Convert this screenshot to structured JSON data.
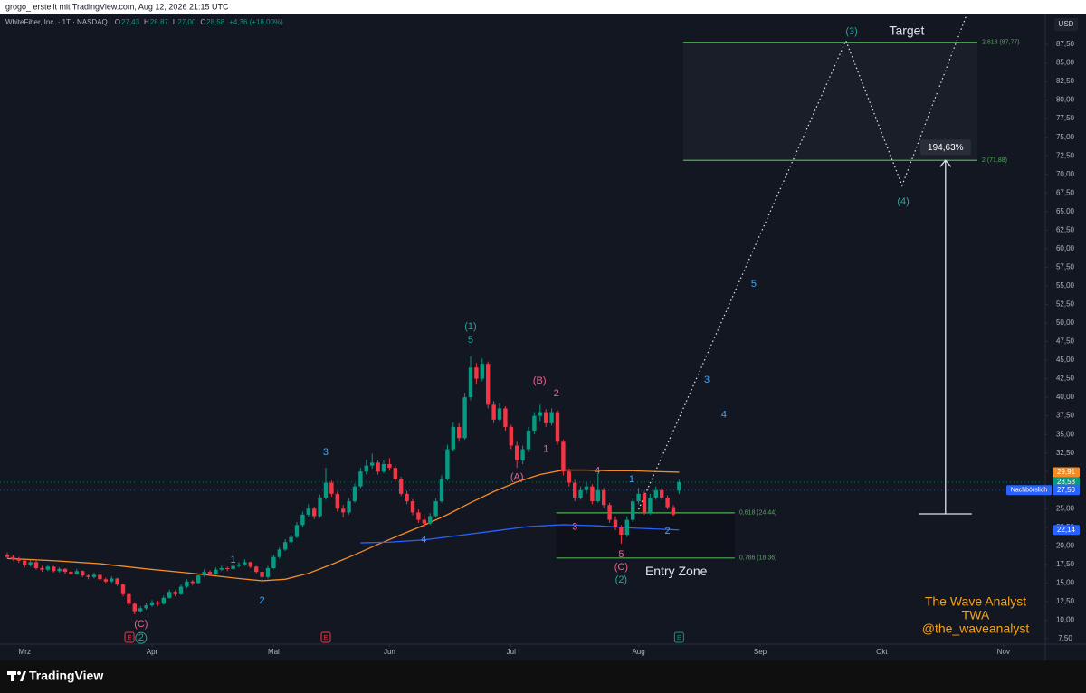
{
  "header": {
    "credit": "grogo_ erstellt mit TradingView.com, Aug 12, 2026 21:15 UTC"
  },
  "chart_data": {
    "type": "candlestick",
    "symbol": "WhiteFiber, Inc. · 1T · NASDAQ",
    "ohlc_header": [
      {
        "key": "O",
        "value": "27,43"
      },
      {
        "key": "H",
        "value": "28,87"
      },
      {
        "key": "L",
        "value": "27,00"
      },
      {
        "key": "C",
        "value": "28,58"
      }
    ],
    "change": "+4,36 (+18,00%)",
    "currency": "USD",
    "up_color": "#089981",
    "down_color": "#f23645",
    "xlim": [
      -1.25,
      179.22
    ],
    "ylim": [
      6.77,
      91.64
    ],
    "xticks": [
      {
        "value": 3,
        "label": "Mrz"
      },
      {
        "value": 25,
        "label": "Apr"
      },
      {
        "value": 46,
        "label": "Mai"
      },
      {
        "value": 66,
        "label": "Jun"
      },
      {
        "value": 87,
        "label": "Jul"
      },
      {
        "value": 109,
        "label": "Aug"
      },
      {
        "value": 130,
        "label": "Sep"
      },
      {
        "value": 151,
        "label": "Okt"
      },
      {
        "value": 172,
        "label": "Nov"
      }
    ],
    "yticks": [
      {
        "value": 7.5,
        "label": "7,50"
      },
      {
        "value": 10,
        "label": "10,00"
      },
      {
        "value": 12.5,
        "label": "12,50"
      },
      {
        "value": 15,
        "label": "15,00"
      },
      {
        "value": 17.5,
        "label": "17,50"
      },
      {
        "value": 20,
        "label": "20,00"
      },
      {
        "value": 22.5,
        "label": "22,50"
      },
      {
        "value": 25,
        "label": "25,00"
      },
      {
        "value": 27.5,
        "label": "27,50"
      },
      {
        "value": 30,
        "label": "30,00"
      },
      {
        "value": 32.5,
        "label": "32,50"
      },
      {
        "value": 35,
        "label": "35,00"
      },
      {
        "value": 37.5,
        "label": "37,50"
      },
      {
        "value": 40,
        "label": "40,00"
      },
      {
        "value": 42.5,
        "label": "42,50"
      },
      {
        "value": 45,
        "label": "45,00"
      },
      {
        "value": 47.5,
        "label": "47,50"
      },
      {
        "value": 50,
        "label": "50,00"
      },
      {
        "value": 52.5,
        "label": "52,50"
      },
      {
        "value": 55,
        "label": "55,00"
      },
      {
        "value": 57.5,
        "label": "57,50"
      },
      {
        "value": 60,
        "label": "60,00"
      },
      {
        "value": 62.5,
        "label": "62,50"
      },
      {
        "value": 65,
        "label": "65,00"
      },
      {
        "value": 67.5,
        "label": "67,50"
      },
      {
        "value": 70,
        "label": "70,00"
      },
      {
        "value": 72.5,
        "label": "72,50"
      },
      {
        "value": 75,
        "label": "75,00"
      },
      {
        "value": 77.5,
        "label": "77,50"
      },
      {
        "value": 80,
        "label": "80,00"
      },
      {
        "value": 82.5,
        "label": "82,50"
      },
      {
        "value": 85,
        "label": "85,00"
      },
      {
        "value": 87.5,
        "label": "87,50"
      }
    ],
    "ohlc": [
      [
        18.8,
        19.1,
        18.3,
        18.5
      ],
      [
        18.5,
        18.8,
        18.0,
        18.2
      ],
      [
        18.2,
        18.5,
        17.7,
        18.0
      ],
      [
        18.0,
        18.2,
        17.1,
        17.4
      ],
      [
        17.4,
        18.1,
        17.2,
        17.8
      ],
      [
        17.8,
        18.0,
        16.8,
        17.0
      ],
      [
        17.0,
        17.3,
        16.5,
        16.8
      ],
      [
        16.8,
        17.5,
        16.6,
        17.2
      ],
      [
        17.2,
        17.3,
        16.4,
        16.6
      ],
      [
        16.6,
        17.1,
        16.4,
        16.9
      ],
      [
        16.9,
        17.0,
        16.2,
        16.5
      ],
      [
        16.5,
        16.7,
        16.0,
        16.2
      ],
      [
        16.2,
        16.9,
        16.1,
        16.6
      ],
      [
        16.6,
        16.7,
        15.8,
        16.0
      ],
      [
        16.0,
        16.2,
        15.5,
        15.8
      ],
      [
        15.8,
        16.4,
        15.6,
        16.1
      ],
      [
        16.1,
        16.2,
        15.3,
        15.5
      ],
      [
        15.5,
        15.7,
        15.0,
        15.2
      ],
      [
        15.2,
        15.9,
        15.0,
        15.6
      ],
      [
        15.6,
        15.7,
        14.6,
        14.8
      ],
      [
        14.8,
        14.9,
        13.2,
        13.5
      ],
      [
        13.5,
        13.6,
        11.9,
        12.2
      ],
      [
        12.2,
        12.4,
        10.8,
        11.2
      ],
      [
        11.2,
        11.9,
        11.0,
        11.6
      ],
      [
        11.6,
        12.3,
        11.4,
        12.0
      ],
      [
        12.0,
        12.7,
        11.8,
        12.4
      ],
      [
        12.4,
        12.6,
        11.9,
        12.2
      ],
      [
        12.2,
        13.3,
        12.1,
        13.0
      ],
      [
        13.0,
        14.1,
        12.9,
        13.8
      ],
      [
        13.8,
        14.0,
        13.2,
        13.5
      ],
      [
        13.5,
        14.8,
        13.4,
        14.5
      ],
      [
        14.5,
        15.5,
        14.3,
        15.2
      ],
      [
        15.2,
        15.4,
        14.7,
        15.0
      ],
      [
        15.0,
        16.3,
        14.9,
        16.0
      ],
      [
        16.0,
        16.8,
        15.8,
        16.5
      ],
      [
        16.5,
        16.7,
        15.9,
        16.2
      ],
      [
        16.2,
        17.1,
        16.0,
        16.8
      ],
      [
        16.8,
        17.3,
        16.6,
        17.0
      ],
      [
        17.0,
        17.2,
        16.6,
        16.9
      ],
      [
        16.9,
        17.6,
        16.8,
        17.3
      ],
      [
        17.3,
        17.8,
        17.1,
        17.5
      ],
      [
        17.5,
        18.2,
        17.3,
        17.8
      ],
      [
        17.8,
        17.9,
        17.0,
        17.2
      ],
      [
        17.2,
        17.3,
        16.3,
        16.5
      ],
      [
        16.5,
        16.7,
        15.3,
        15.8
      ],
      [
        15.8,
        17.3,
        15.6,
        17.0
      ],
      [
        17.0,
        18.8,
        16.9,
        18.5
      ],
      [
        18.5,
        19.8,
        18.3,
        19.5
      ],
      [
        19.5,
        20.9,
        19.3,
        20.5
      ],
      [
        20.5,
        21.5,
        20.1,
        21.2
      ],
      [
        21.2,
        23.2,
        21.0,
        22.8
      ],
      [
        22.8,
        24.6,
        22.5,
        24.2
      ],
      [
        24.2,
        25.6,
        23.9,
        25.0
      ],
      [
        25.0,
        25.3,
        23.6,
        24.0
      ],
      [
        24.0,
        26.9,
        23.8,
        26.5
      ],
      [
        26.5,
        30.5,
        26.2,
        28.5
      ],
      [
        28.5,
        28.8,
        26.6,
        27.0
      ],
      [
        27.0,
        27.3,
        24.6,
        25.0
      ],
      [
        25.0,
        25.5,
        23.8,
        24.5
      ],
      [
        24.5,
        26.4,
        24.2,
        26.0
      ],
      [
        26.0,
        28.4,
        25.8,
        28.0
      ],
      [
        28.0,
        30.5,
        27.8,
        30.0
      ],
      [
        30.0,
        31.6,
        29.6,
        30.8
      ],
      [
        30.8,
        32.4,
        30.4,
        31.2
      ],
      [
        31.2,
        31.5,
        29.6,
        30.0
      ],
      [
        30.0,
        31.5,
        29.8,
        31.0
      ],
      [
        31.0,
        31.8,
        30.1,
        30.5
      ],
      [
        30.5,
        30.8,
        28.6,
        29.0
      ],
      [
        29.0,
        29.3,
        26.7,
        27.0
      ],
      [
        27.0,
        27.4,
        25.6,
        26.0
      ],
      [
        26.0,
        26.3,
        24.1,
        24.5
      ],
      [
        24.5,
        24.9,
        23.1,
        23.5
      ],
      [
        23.5,
        24.1,
        22.5,
        23.0
      ],
      [
        23.0,
        24.4,
        22.8,
        24.0
      ],
      [
        24.0,
        26.4,
        23.8,
        26.0
      ],
      [
        26.0,
        29.5,
        25.8,
        29.0
      ],
      [
        29.0,
        33.6,
        28.8,
        33.0
      ],
      [
        33.0,
        36.6,
        32.7,
        36.0
      ],
      [
        36.0,
        36.5,
        34.0,
        34.5
      ],
      [
        34.5,
        40.6,
        34.3,
        40.0
      ],
      [
        40.0,
        45.5,
        39.6,
        44.0
      ],
      [
        44.0,
        44.6,
        41.8,
        42.5
      ],
      [
        42.5,
        45.2,
        42.2,
        44.5
      ],
      [
        44.5,
        44.8,
        38.5,
        39.0
      ],
      [
        39.0,
        39.5,
        36.5,
        37.0
      ],
      [
        37.0,
        39.2,
        36.8,
        38.5
      ],
      [
        38.5,
        38.8,
        35.5,
        36.0
      ],
      [
        36.0,
        36.3,
        33.0,
        33.5
      ],
      [
        33.5,
        34.0,
        30.5,
        31.5
      ],
      [
        31.5,
        33.5,
        31.0,
        33.0
      ],
      [
        33.0,
        36.0,
        32.6,
        35.5
      ],
      [
        35.5,
        38.0,
        35.0,
        37.5
      ],
      [
        37.5,
        39.0,
        36.8,
        38.0
      ],
      [
        38.0,
        38.4,
        36.0,
        36.5
      ],
      [
        36.5,
        38.5,
        36.2,
        38.0
      ],
      [
        38.0,
        38.3,
        33.6,
        34.0
      ],
      [
        34.0,
        34.3,
        29.5,
        30.0
      ],
      [
        30.0,
        30.4,
        28.0,
        28.5
      ],
      [
        28.5,
        28.9,
        26.0,
        26.5
      ],
      [
        26.5,
        28.0,
        26.2,
        27.5
      ],
      [
        27.5,
        28.5,
        27.0,
        28.0
      ],
      [
        28.0,
        28.3,
        25.6,
        26.0
      ],
      [
        26.0,
        29.8,
        25.8,
        27.5
      ],
      [
        27.5,
        27.8,
        25.1,
        25.5
      ],
      [
        25.5,
        25.8,
        23.1,
        23.5
      ],
      [
        23.5,
        24.0,
        22.1,
        22.5
      ],
      [
        22.5,
        22.8,
        20.3,
        21.5
      ],
      [
        21.5,
        24.0,
        21.2,
        23.5
      ],
      [
        23.5,
        26.4,
        23.2,
        26.0
      ],
      [
        26.0,
        27.8,
        25.6,
        27.0
      ],
      [
        27.0,
        27.3,
        24.2,
        24.5
      ],
      [
        24.5,
        27.0,
        24.2,
        26.5
      ],
      [
        26.5,
        28.0,
        26.2,
        27.5
      ],
      [
        27.5,
        27.8,
        26.2,
        26.5
      ],
      [
        26.5,
        26.8,
        24.9,
        25.2
      ],
      [
        25.2,
        25.5,
        24.0,
        24.22
      ],
      [
        27.43,
        28.87,
        27.0,
        28.58
      ]
    ],
    "last_price": {
      "value": 28.58,
      "label": "28,58"
    },
    "post_market": {
      "value": 27.5,
      "label": "27,50",
      "text": "Nachbörslich"
    },
    "series": [
      {
        "color": "#f28c28",
        "x": [
          0,
          8,
          16,
          24,
          32,
          40,
          44,
          48,
          52,
          56,
          60,
          64,
          68,
          72,
          76,
          80,
          84,
          88,
          92,
          96,
          100,
          104,
          108,
          112,
          116
        ],
        "values": [
          18.3,
          18.0,
          17.6,
          16.9,
          16.3,
          15.6,
          15.3,
          15.5,
          16.3,
          17.5,
          18.8,
          20.2,
          21.5,
          22.8,
          24.2,
          25.8,
          27.3,
          28.6,
          29.6,
          30.2,
          30.2,
          30.1,
          30.1,
          30.0,
          29.91
        ],
        "price_label": {
          "value": 29.91,
          "label": "29,91"
        }
      },
      {
        "color": "#2962ff",
        "x": [
          61,
          66,
          72,
          78,
          84,
          90,
          96,
          102,
          108,
          116
        ],
        "values": [
          20.4,
          20.5,
          20.8,
          21.4,
          22.0,
          22.6,
          22.85,
          22.7,
          22.4,
          22.14
        ],
        "price_label": {
          "value": 22.14,
          "label": "22,14"
        }
      }
    ],
    "fib_target": {
      "x": [
        116.7,
        167.5
      ],
      "levels": [
        {
          "value": 87.77,
          "label": "2,618 (87,77)"
        },
        {
          "value": 71.88,
          "label": "2 (71,88)"
        }
      ],
      "color": "#4caf50"
    },
    "fib_entry": {
      "x": [
        94.8,
        125.6
      ],
      "levels": [
        {
          "value": 24.44,
          "label": "0,618 (24,44)"
        },
        {
          "value": 18.36,
          "label": "0,786 (18,36)"
        }
      ],
      "color": "#4caf50"
    },
    "measure": {
      "x": 162,
      "from": 24.3,
      "to": 71.88,
      "label": "194,63%"
    },
    "projection": {
      "x": [
        109,
        144.8,
        154.5,
        165.7
      ],
      "values": [
        24.9,
        88.0,
        68.5,
        91.6
      ]
    },
    "waves": [
      {
        "label": "(C)",
        "x": 23.1,
        "price": 9.45,
        "color": "#f06292"
      },
      {
        "label": "2",
        "x": 23.1,
        "price": 7.6,
        "color": "#26a69a",
        "circled": true
      },
      {
        "label": "1",
        "x": 39,
        "price": 18.1,
        "color": "#42a5f5"
      },
      {
        "label": "2",
        "x": 44,
        "price": 12.6,
        "color": "#42a5f5"
      },
      {
        "label": "3",
        "x": 55,
        "price": 32.6,
        "color": "#42a5f5"
      },
      {
        "label": "4",
        "x": 71.9,
        "price": 20.8,
        "color": "#42a5f5"
      },
      {
        "label": "5",
        "x": 80,
        "price": 47.7,
        "color": "#26a69a"
      },
      {
        "label": "(1)",
        "x": 80,
        "price": 49.5,
        "color": "#26a69a"
      },
      {
        "label": "(A)",
        "x": 88,
        "price": 29.2,
        "color": "#f06292"
      },
      {
        "label": "(B)",
        "x": 91.9,
        "price": 42.2,
        "color": "#f06292"
      },
      {
        "label": "2",
        "x": 94.8,
        "price": 40.5,
        "color": "#f06292"
      },
      {
        "label": "1",
        "x": 93,
        "price": 33.0,
        "color": "#f06292"
      },
      {
        "label": "3",
        "x": 98,
        "price": 22.5,
        "color": "#f06292"
      },
      {
        "label": "4",
        "x": 101.9,
        "price": 30.05,
        "color": "#f06292"
      },
      {
        "label": "5",
        "x": 106,
        "price": 18.8,
        "color": "#f06292"
      },
      {
        "label": "(C)",
        "x": 106,
        "price": 17.1,
        "color": "#f06292"
      },
      {
        "label": "(2)",
        "x": 106,
        "price": 15.4,
        "color": "#26a69a"
      },
      {
        "label": "1",
        "x": 107.8,
        "price": 28.9,
        "color": "#42a5f5"
      },
      {
        "label": "2",
        "x": 114,
        "price": 22.0,
        "color": "#42a5f5"
      },
      {
        "label": "3",
        "x": 120.8,
        "price": 42.3,
        "color": "#42a5f5"
      },
      {
        "label": "4",
        "x": 123.75,
        "price": 37.6,
        "color": "#42a5f5"
      },
      {
        "label": "5",
        "x": 128.9,
        "price": 55.2,
        "color": "#42a5f5"
      },
      {
        "label": "(3)",
        "x": 145.8,
        "price": 89.2,
        "color": "#26a69a"
      },
      {
        "label": "(4)",
        "x": 154.7,
        "price": 66.3,
        "color": "#26a69a"
      }
    ],
    "annotations": [
      {
        "text": "Target",
        "x": 155.3,
        "price": 89.2
      },
      {
        "text": "Entry Zone",
        "x": 115.5,
        "price": 16.5
      }
    ],
    "earnings": [
      {
        "x": 21.1,
        "label": "E",
        "color": "#f23645"
      },
      {
        "x": 55,
        "label": "E",
        "color": "#f23645"
      },
      {
        "x": 116,
        "label": "E",
        "color": "#089981"
      }
    ],
    "signature": {
      "lines": [
        "The Wave Analyst",
        "TWA",
        "@the_waveanalyst"
      ],
      "color": "#f7a21b"
    }
  },
  "footer": {
    "brand": "TradingView"
  }
}
